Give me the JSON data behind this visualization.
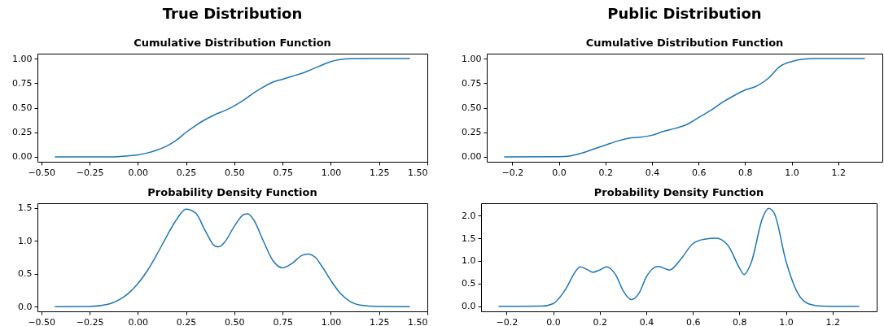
{
  "chart_data": [
    {
      "type": "line",
      "title": "True Distribution",
      "subtitle": "Cumulative Distribution Function",
      "color": "#1f77b4",
      "x": [
        -0.43,
        -0.25,
        -0.15,
        -0.05,
        0,
        0.05,
        0.1,
        0.15,
        0.2,
        0.25,
        0.3,
        0.35,
        0.4,
        0.45,
        0.5,
        0.55,
        0.6,
        0.65,
        0.7,
        0.75,
        0.8,
        0.85,
        0.9,
        0.95,
        1.0,
        1.05,
        1.1,
        1.2,
        1.41
      ],
      "values": [
        0,
        0,
        0,
        0.01,
        0.02,
        0.04,
        0.07,
        0.11,
        0.17,
        0.25,
        0.32,
        0.38,
        0.43,
        0.47,
        0.52,
        0.58,
        0.65,
        0.71,
        0.76,
        0.79,
        0.82,
        0.85,
        0.89,
        0.93,
        0.97,
        0.99,
        0.998,
        1,
        1
      ],
      "xlim": [
        -0.52,
        1.5
      ],
      "ylim": [
        -0.05,
        1.05
      ],
      "xticks": [
        {
          "value": -0.5,
          "label": "−0.50"
        },
        {
          "value": -0.25,
          "label": "−0.25"
        },
        {
          "value": 0,
          "label": "0.00"
        },
        {
          "value": 0.25,
          "label": "0.25"
        },
        {
          "value": 0.5,
          "label": "0.50"
        },
        {
          "value": 0.75,
          "label": "0.75"
        },
        {
          "value": 1,
          "label": "1.00"
        },
        {
          "value": 1.25,
          "label": "1.25"
        },
        {
          "value": 1.5,
          "label": "1.50"
        }
      ],
      "yticks": [
        {
          "value": 0,
          "label": "0.00"
        },
        {
          "value": 0.25,
          "label": "0.25"
        },
        {
          "value": 0.5,
          "label": "0.50"
        },
        {
          "value": 0.75,
          "label": "0.75"
        },
        {
          "value": 1,
          "label": "1.00"
        }
      ]
    },
    {
      "type": "line",
      "title": "Public Distribution",
      "subtitle": "Cumulative Distribution Function",
      "color": "#1f77b4",
      "x": [
        -0.235,
        0,
        0.05,
        0.1,
        0.15,
        0.2,
        0.25,
        0.3,
        0.35,
        0.4,
        0.45,
        0.5,
        0.55,
        0.6,
        0.65,
        0.7,
        0.75,
        0.8,
        0.85,
        0.9,
        0.95,
        1.0,
        1.05,
        1.1,
        1.315
      ],
      "values": [
        0,
        0.001,
        0.01,
        0.04,
        0.08,
        0.12,
        0.16,
        0.19,
        0.2,
        0.22,
        0.26,
        0.29,
        0.33,
        0.4,
        0.47,
        0.55,
        0.62,
        0.68,
        0.72,
        0.8,
        0.92,
        0.97,
        0.995,
        1,
        1
      ],
      "xlim": [
        -0.31,
        1.39
      ],
      "ylim": [
        -0.05,
        1.05
      ],
      "xticks": [
        {
          "value": -0.2,
          "label": "−0.2"
        },
        {
          "value": 0,
          "label": "0.0"
        },
        {
          "value": 0.2,
          "label": "0.2"
        },
        {
          "value": 0.4,
          "label": "0.4"
        },
        {
          "value": 0.6,
          "label": "0.6"
        },
        {
          "value": 0.8,
          "label": "0.8"
        },
        {
          "value": 1,
          "label": "1.0"
        },
        {
          "value": 1.2,
          "label": "1.2"
        }
      ],
      "yticks": [
        {
          "value": 0,
          "label": "0.00"
        },
        {
          "value": 0.25,
          "label": "0.25"
        },
        {
          "value": 0.5,
          "label": "0.50"
        },
        {
          "value": 0.75,
          "label": "0.75"
        },
        {
          "value": 1,
          "label": "1.00"
        }
      ]
    },
    {
      "type": "line",
      "title": "Probability Density Function",
      "color": "#1f77b4",
      "x": [
        -0.43,
        -0.25,
        -0.15,
        -0.1,
        -0.05,
        0,
        0.05,
        0.1,
        0.15,
        0.2,
        0.25,
        0.3,
        0.35,
        0.4,
        0.42,
        0.45,
        0.5,
        0.55,
        0.57,
        0.6,
        0.65,
        0.7,
        0.75,
        0.8,
        0.85,
        0.88,
        0.92,
        0.95,
        1.0,
        1.05,
        1.1,
        1.15,
        1.25,
        1.41
      ],
      "values": [
        0,
        0.003,
        0.04,
        0.1,
        0.2,
        0.35,
        0.55,
        0.8,
        1.07,
        1.32,
        1.48,
        1.42,
        1.15,
        0.92,
        0.91,
        0.98,
        1.22,
        1.4,
        1.41,
        1.32,
        1.0,
        0.7,
        0.59,
        0.66,
        0.78,
        0.8,
        0.75,
        0.63,
        0.4,
        0.2,
        0.08,
        0.025,
        0.003,
        0
      ],
      "xlim": [
        -0.52,
        1.5
      ],
      "ylim": [
        -0.07,
        1.57
      ],
      "xticks": [
        {
          "value": -0.5,
          "label": "−0.50"
        },
        {
          "value": -0.25,
          "label": "−0.25"
        },
        {
          "value": 0,
          "label": "0.00"
        },
        {
          "value": 0.25,
          "label": "0.25"
        },
        {
          "value": 0.5,
          "label": "0.50"
        },
        {
          "value": 0.75,
          "label": "0.75"
        },
        {
          "value": 1,
          "label": "1.00"
        },
        {
          "value": 1.25,
          "label": "1.25"
        },
        {
          "value": 1.5,
          "label": "1.50"
        }
      ],
      "yticks": [
        {
          "value": 0,
          "label": "0.0"
        },
        {
          "value": 0.5,
          "label": "0.5"
        },
        {
          "value": 1,
          "label": "1.0"
        },
        {
          "value": 1.5,
          "label": "1.5"
        }
      ]
    },
    {
      "type": "line",
      "title": "Probability Density Function",
      "color": "#1f77b4",
      "x": [
        -0.235,
        -0.05,
        0,
        0.05,
        0.1,
        0.115,
        0.15,
        0.17,
        0.2,
        0.23,
        0.27,
        0.3,
        0.335,
        0.37,
        0.4,
        0.45,
        0.5,
        0.55,
        0.6,
        0.65,
        0.7,
        0.75,
        0.8,
        0.82,
        0.85,
        0.9,
        0.925,
        0.95,
        1.0,
        1.05,
        1.1,
        1.15,
        1.315
      ],
      "values": [
        0,
        0.005,
        0.06,
        0.35,
        0.8,
        0.87,
        0.8,
        0.75,
        0.8,
        0.87,
        0.68,
        0.35,
        0.15,
        0.3,
        0.65,
        0.88,
        0.8,
        1.05,
        1.38,
        1.48,
        1.5,
        1.35,
        0.85,
        0.7,
        0.95,
        1.95,
        2.16,
        2.05,
        1.0,
        0.3,
        0.05,
        0.005,
        0
      ],
      "xlim": [
        -0.31,
        1.39
      ],
      "ylim": [
        -0.11,
        2.27
      ],
      "xticks": [
        {
          "value": -0.2,
          "label": "−0.2"
        },
        {
          "value": 0,
          "label": "0.0"
        },
        {
          "value": 0.2,
          "label": "0.2"
        },
        {
          "value": 0.4,
          "label": "0.4"
        },
        {
          "value": 0.6,
          "label": "0.6"
        },
        {
          "value": 0.8,
          "label": "0.8"
        },
        {
          "value": 1,
          "label": "1.0"
        },
        {
          "value": 1.2,
          "label": "1.2"
        }
      ],
      "yticks": [
        {
          "value": 0,
          "label": "0.0"
        },
        {
          "value": 0.5,
          "label": "0.5"
        },
        {
          "value": 1,
          "label": "1.0"
        },
        {
          "value": 1.5,
          "label": "1.5"
        },
        {
          "value": 2,
          "label": "2.0"
        }
      ]
    }
  ]
}
